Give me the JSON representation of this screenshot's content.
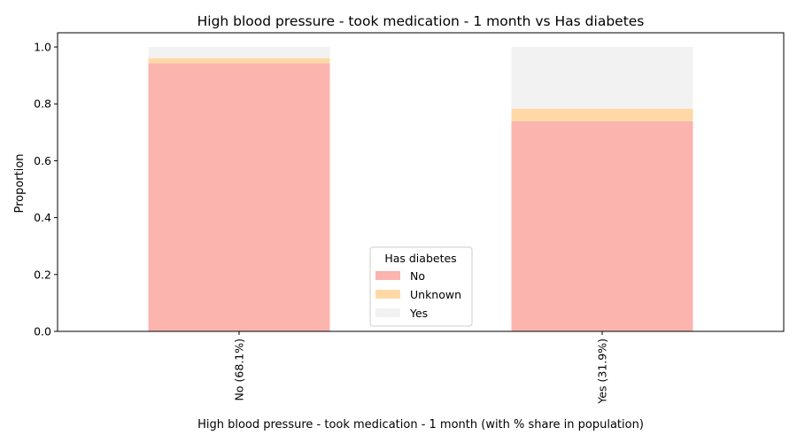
{
  "chart_data": {
    "type": "bar",
    "stacked": true,
    "title": "High blood pressure - took medication - 1 month vs Has diabetes",
    "xlabel": "High blood pressure - took medication - 1 month (with % share in population)",
    "ylabel": "Proportion",
    "categories": [
      "No (68.1%)",
      "Yes (31.9%)"
    ],
    "series": [
      {
        "name": "No",
        "values": [
          0.943,
          0.739
        ],
        "color": "#fbb4ae"
      },
      {
        "name": "Unknown",
        "values": [
          0.018,
          0.044
        ],
        "color": "#fed9a6"
      },
      {
        "name": "Yes",
        "values": [
          0.039,
          0.217
        ],
        "color": "#f2f2f2"
      }
    ],
    "ylim": [
      0,
      1.05
    ],
    "yticks": [
      "0.0",
      "0.2",
      "0.4",
      "0.6",
      "0.8",
      "1.0"
    ],
    "grid": false,
    "legend": {
      "title": "Has diabetes",
      "placement": "lower-center"
    }
  }
}
